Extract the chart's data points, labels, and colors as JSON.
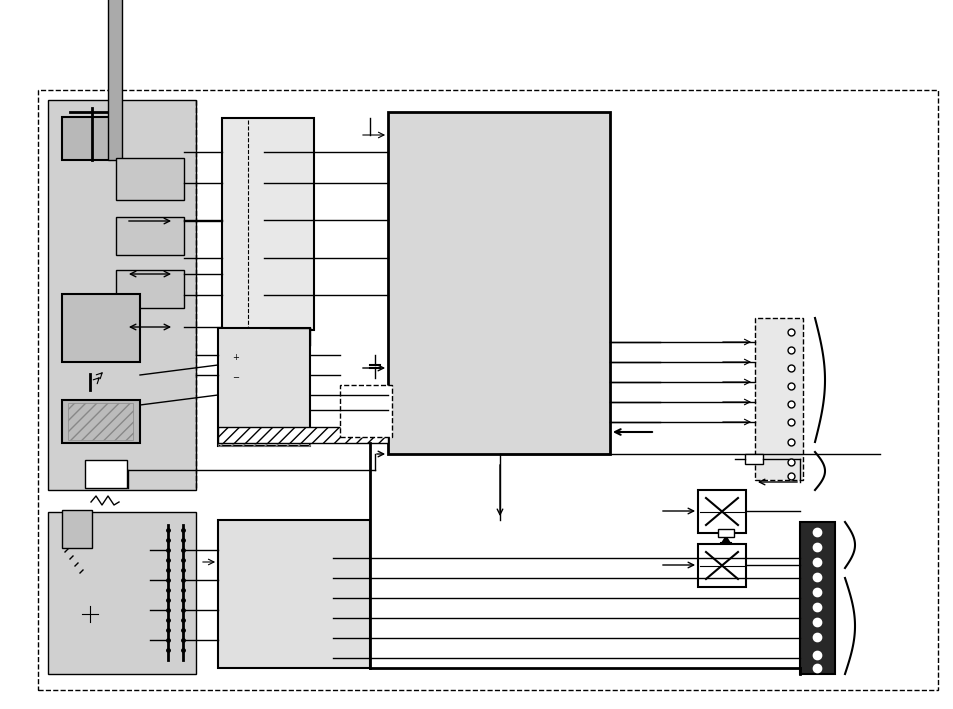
{
  "bg_color": "#ffffff",
  "fig_width": 9.54,
  "fig_height": 7.09,
  "dpi": 100
}
